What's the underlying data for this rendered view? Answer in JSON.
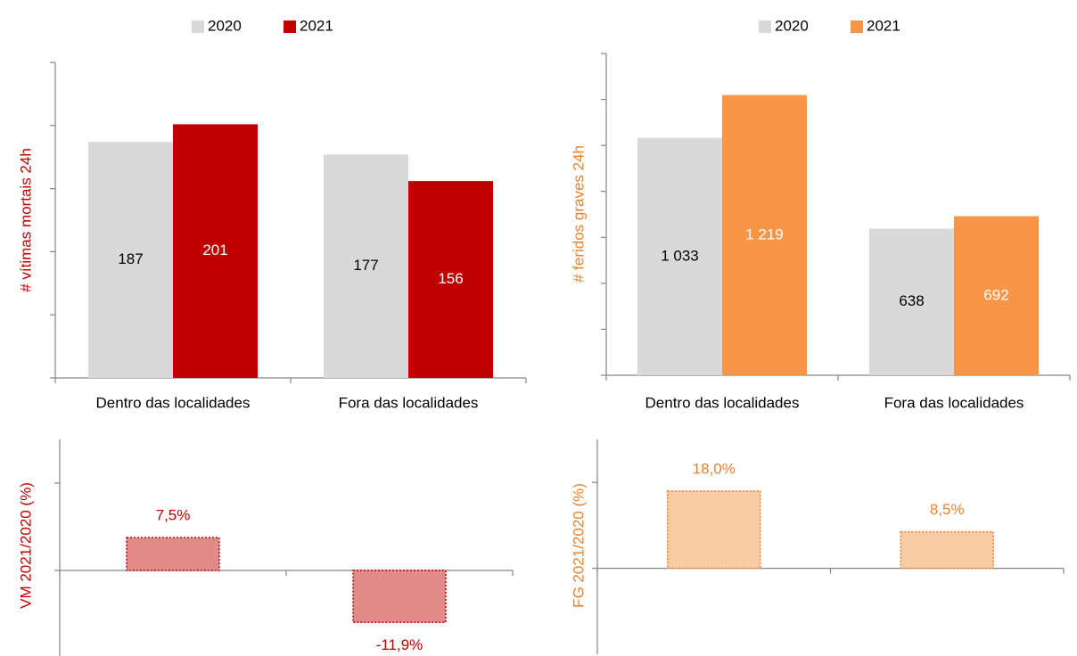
{
  "chart_data": [
    {
      "type": "grouped-bar",
      "ylabel": "# vítimas mortais 24h",
      "ylabel_color": "#c00000",
      "categories": [
        "Dentro das localidades",
        "Fora das localidades"
      ],
      "series": [
        {
          "name": "2020",
          "color": "#d9d9d9",
          "label_color": "#000000",
          "values": [
            187,
            177
          ]
        },
        {
          "name": "2021",
          "color": "#c00000",
          "label_color": "#ffffff",
          "values": [
            201,
            156
          ]
        }
      ],
      "ylim": [
        0,
        250
      ],
      "yticks": [
        0,
        50,
        100,
        150,
        200,
        250
      ],
      "legend": "top"
    },
    {
      "type": "grouped-bar",
      "ylabel": "# feridos graves 24h",
      "ylabel_color": "#e9822e",
      "categories": [
        "Dentro das localidades",
        "Fora das localidades"
      ],
      "series": [
        {
          "name": "2020",
          "color": "#d9d9d9",
          "label_color": "#000000",
          "values": [
            1033,
            638
          ],
          "value_labels": [
            "1 033",
            "638"
          ]
        },
        {
          "name": "2021",
          "color": "#f79646",
          "label_color": "#ffffff",
          "values": [
            1219,
            692
          ],
          "value_labels": [
            "1 219",
            "692"
          ]
        }
      ],
      "ylim": [
        0,
        1400
      ],
      "yticks": [
        0,
        200,
        400,
        600,
        800,
        1000,
        1200,
        1400
      ],
      "legend": "top"
    },
    {
      "type": "bar",
      "ylabel": "VM 2021/2020 (%)",
      "ylabel_color": "#c00000",
      "values": [
        7.5,
        -11.9
      ],
      "value_labels": [
        "7,5%",
        "-11,9%"
      ],
      "color": "#e08a8a",
      "border_color": "#c00000",
      "label_color": "#c00000",
      "ylim": [
        -20,
        30
      ],
      "yticks": [
        0,
        20
      ]
    },
    {
      "type": "bar",
      "ylabel": "FG 2021/2020 (%)",
      "ylabel_color": "#e9822e",
      "values": [
        18.0,
        8.5
      ],
      "value_labels": [
        "18,0%",
        "8,5%"
      ],
      "color": "#f9cba4",
      "border_color": "#e9822e",
      "label_color": "#e9822e",
      "ylim": [
        -20,
        30
      ],
      "yticks": [
        0,
        20
      ]
    }
  ]
}
